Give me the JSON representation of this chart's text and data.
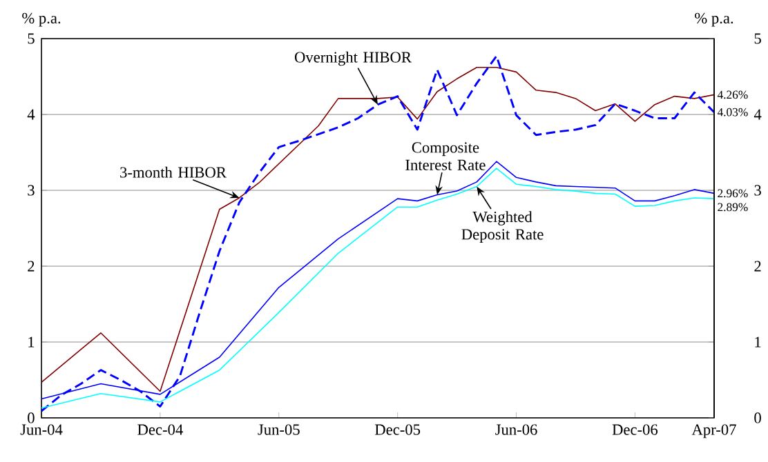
{
  "chart_data": {
    "type": "line",
    "ylabel": "% p.a.",
    "y2label": "% p.a.",
    "xlim": [
      "2004-06",
      "2007-04"
    ],
    "xticks": [
      {
        "value": "2004-06",
        "label": "Jun-04"
      },
      {
        "value": "2004-12",
        "label": "Dec-04"
      },
      {
        "value": "2005-06",
        "label": "Jun-05"
      },
      {
        "value": "2005-12",
        "label": "Dec-05"
      },
      {
        "value": "2006-06",
        "label": "Jun-06"
      },
      {
        "value": "2006-12",
        "label": "Dec-06"
      },
      {
        "value": "2007-04",
        "label": "Apr-07"
      }
    ],
    "ylim": [
      0,
      5
    ],
    "yticks": [
      0,
      1,
      2,
      3,
      4,
      5
    ],
    "y2lim": [
      0,
      5
    ],
    "y2ticks": [
      0,
      1,
      2,
      3,
      4,
      5
    ],
    "grid": "y",
    "legend": false,
    "series": [
      {
        "name": "3-month HIBOR",
        "color": "#800000",
        "x": [
          "2004-06",
          "2004-09",
          "2004-12",
          "2005-03",
          "2005-04",
          "2005-05",
          "2005-06",
          "2005-07",
          "2005-08",
          "2005-09",
          "2005-10",
          "2005-11",
          "2005-12",
          "2006-01",
          "2006-02",
          "2006-03",
          "2006-04",
          "2006-05",
          "2006-06",
          "2006-07",
          "2006-08",
          "2006-09",
          "2006-10",
          "2006-11",
          "2006-12",
          "2007-01",
          "2007-02",
          "2007-03",
          "2007-04"
        ],
        "values": [
          0.47,
          1.12,
          0.35,
          2.75,
          2.9,
          3.1,
          3.35,
          3.6,
          3.85,
          4.21,
          4.21,
          4.21,
          4.23,
          3.94,
          4.3,
          4.47,
          4.62,
          4.62,
          4.56,
          4.32,
          4.29,
          4.21,
          4.05,
          4.14,
          3.91,
          4.13,
          4.24,
          4.21,
          4.26
        ],
        "value_labels": [
          null,
          null,
          null,
          null,
          null,
          null,
          null,
          null,
          null,
          null,
          null,
          null,
          null,
          null,
          null,
          null,
          null,
          null,
          null,
          null,
          null,
          null,
          null,
          null,
          null,
          null,
          null,
          null,
          "4.26%"
        ]
      },
      {
        "name": "Overnight HIBOR",
        "color": "#0000ff",
        "line_style": "dashed",
        "x": [
          "2004-06",
          "2004-07",
          "2004-08",
          "2004-09",
          "2004-10",
          "2004-11",
          "2004-12",
          "2005-01",
          "2005-02",
          "2005-03",
          "2005-04",
          "2005-05",
          "2005-06",
          "2005-07",
          "2005-08",
          "2005-09",
          "2005-10",
          "2005-11",
          "2005-12",
          "2006-01",
          "2006-02",
          "2006-03",
          "2006-04",
          "2006-05",
          "2006-06",
          "2006-07",
          "2006-08",
          "2006-09",
          "2006-10",
          "2006-11",
          "2006-12",
          "2007-01",
          "2007-02",
          "2007-03",
          "2007-04"
        ],
        "values": [
          0.09,
          0.3,
          0.45,
          0.63,
          0.5,
          0.35,
          0.15,
          0.55,
          1.39,
          2.2,
          2.84,
          3.23,
          3.57,
          3.65,
          3.74,
          3.83,
          3.95,
          4.13,
          4.24,
          3.8,
          4.59,
          3.99,
          4.41,
          4.77,
          3.99,
          3.73,
          3.77,
          3.8,
          3.86,
          4.14,
          4.05,
          3.95,
          3.95,
          4.29,
          4.03
        ],
        "value_labels": [
          null,
          null,
          null,
          null,
          null,
          null,
          null,
          null,
          null,
          null,
          null,
          null,
          null,
          null,
          null,
          null,
          null,
          null,
          null,
          null,
          null,
          null,
          null,
          null,
          null,
          null,
          null,
          null,
          null,
          null,
          null,
          null,
          null,
          null,
          "4.03%"
        ]
      },
      {
        "name": "Composite Interest Rate",
        "color": "#0000ff",
        "x": [
          "2004-06",
          "2004-09",
          "2004-12",
          "2005-03",
          "2005-06",
          "2005-09",
          "2005-12",
          "2006-01",
          "2006-02",
          "2006-03",
          "2006-04",
          "2006-05",
          "2006-06",
          "2006-07",
          "2006-08",
          "2006-09",
          "2006-10",
          "2006-11",
          "2006-12",
          "2007-01",
          "2007-02",
          "2007-03",
          "2007-04"
        ],
        "values": [
          0.25,
          0.45,
          0.31,
          0.8,
          1.72,
          2.36,
          2.89,
          2.86,
          2.94,
          2.99,
          3.11,
          3.38,
          3.17,
          3.11,
          3.06,
          3.05,
          3.04,
          3.03,
          2.86,
          2.86,
          2.93,
          3.01,
          2.96
        ],
        "value_labels": [
          null,
          null,
          null,
          null,
          null,
          null,
          null,
          null,
          null,
          null,
          null,
          null,
          null,
          null,
          null,
          null,
          null,
          null,
          null,
          null,
          null,
          null,
          "2.96%"
        ]
      },
      {
        "name": "Weighted Deposit Rate",
        "color": "#00ffff",
        "x": [
          "2004-06",
          "2004-09",
          "2004-12",
          "2005-03",
          "2005-06",
          "2005-09",
          "2005-12",
          "2006-01",
          "2006-02",
          "2006-03",
          "2006-04",
          "2006-05",
          "2006-06",
          "2006-07",
          "2006-08",
          "2006-09",
          "2006-10",
          "2006-11",
          "2006-12",
          "2007-01",
          "2007-02",
          "2007-03",
          "2007-04"
        ],
        "values": [
          0.13,
          0.32,
          0.21,
          0.63,
          1.39,
          2.17,
          2.78,
          2.78,
          2.87,
          2.95,
          3.05,
          3.29,
          3.08,
          3.05,
          3.01,
          2.99,
          2.96,
          2.95,
          2.79,
          2.8,
          2.86,
          2.9,
          2.89
        ],
        "value_labels": [
          null,
          null,
          null,
          null,
          null,
          null,
          null,
          null,
          null,
          null,
          null,
          null,
          null,
          null,
          null,
          null,
          null,
          null,
          null,
          null,
          null,
          null,
          "2.89%"
        ]
      }
    ]
  }
}
